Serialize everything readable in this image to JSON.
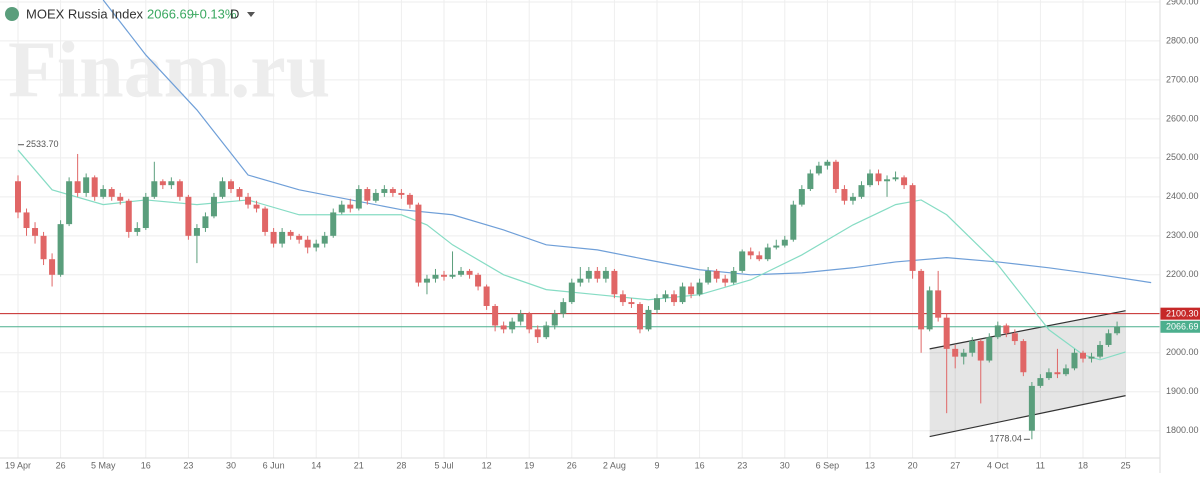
{
  "chart_data": {
    "type": "candlestick",
    "title": "MOEX Russia Index",
    "change": "+0.13%",
    "interval": "D",
    "watermark": "Finam.ru",
    "categories": [
      "19 Apr",
      null,
      null,
      null,
      null,
      "26",
      null,
      null,
      null,
      null,
      "5 May",
      null,
      null,
      null,
      null,
      "16",
      null,
      null,
      null,
      null,
      "23",
      null,
      null,
      null,
      null,
      "30",
      null,
      null,
      null,
      null,
      "6 Jun",
      null,
      null,
      null,
      null,
      "14",
      null,
      null,
      null,
      null,
      "21",
      null,
      null,
      null,
      null,
      "28",
      null,
      null,
      null,
      null,
      "5 Jul",
      null,
      null,
      null,
      null,
      "12",
      null,
      null,
      null,
      null,
      "19",
      null,
      null,
      null,
      null,
      "26",
      null,
      null,
      null,
      null,
      "2 Aug",
      null,
      null,
      null,
      null,
      "9",
      null,
      null,
      null,
      null,
      "16",
      null,
      null,
      null,
      null,
      "23",
      null,
      null,
      null,
      null,
      "30",
      null,
      null,
      null,
      null,
      "6 Sep",
      null,
      null,
      null,
      null,
      "13",
      null,
      null,
      null,
      null,
      "20",
      null,
      null,
      null,
      null,
      "27",
      null,
      null,
      null,
      null,
      "4 Oct",
      null,
      null,
      null,
      null,
      "11",
      null,
      null,
      null,
      null,
      "18",
      null,
      null,
      null,
      null,
      "25"
    ],
    "open": [
      2440,
      2360,
      2320,
      2300,
      2240,
      2200,
      2330,
      2440,
      2410,
      2450,
      2400,
      2420,
      2400,
      2390,
      2310,
      2320,
      2400,
      2440,
      2430,
      2440,
      2400,
      2300,
      2320,
      2350,
      2400,
      2440,
      2420,
      2400,
      2380,
      2370,
      2310,
      2280,
      2310,
      2300,
      2290,
      2270,
      2280,
      2300,
      2360,
      2380,
      2370,
      2420,
      2390,
      2410,
      2420,
      2410,
      2405,
      2380,
      2180,
      2190,
      2200,
      2195,
      2200,
      2210,
      2200,
      2170,
      2120,
      2070,
      2060,
      2080,
      2100,
      2060,
      2040,
      2070,
      2100,
      2130,
      2180,
      2190,
      2210,
      2190,
      2210,
      2150,
      2130,
      2125,
      2060,
      2110,
      2140,
      2150,
      2130,
      2170,
      2150,
      2180,
      2210,
      2190,
      2180,
      2210,
      2260,
      2250,
      2240,
      2270,
      2275,
      2290,
      2380,
      2420,
      2460,
      2480,
      2490,
      2420,
      2390,
      2400,
      2430,
      2460,
      2440,
      2445,
      2450,
      2430,
      2210,
      2060,
      2160,
      2090,
      2010,
      1990,
      2000,
      2030,
      1980,
      2040,
      2070,
      2050,
      2030,
      1800,
      1915,
      1935,
      1950,
      1945,
      1960,
      2000,
      1985,
      1990,
      2020,
      2050,
      null
    ],
    "high": [
      2455,
      2370,
      2335,
      2310,
      2255,
      2340,
      2450,
      2510,
      2460,
      2455,
      2430,
      2425,
      2410,
      2395,
      2335,
      2410,
      2490,
      2445,
      2450,
      2445,
      2405,
      2330,
      2360,
      2410,
      2450,
      2445,
      2425,
      2410,
      2390,
      2375,
      2320,
      2320,
      2315,
      2305,
      2300,
      2290,
      2310,
      2370,
      2390,
      2395,
      2430,
      2425,
      2420,
      2430,
      2425,
      2420,
      2410,
      2385,
      2200,
      2215,
      2210,
      2260,
      2220,
      2215,
      2205,
      2175,
      2125,
      2080,
      2090,
      2110,
      2105,
      2070,
      2080,
      2110,
      2140,
      2190,
      2220,
      2220,
      2220,
      2220,
      2215,
      2160,
      2140,
      2130,
      2120,
      2150,
      2160,
      2160,
      2180,
      2180,
      2190,
      2220,
      2215,
      2200,
      2220,
      2265,
      2270,
      2260,
      2280,
      2290,
      2300,
      2390,
      2430,
      2470,
      2490,
      2495,
      2495,
      2430,
      2410,
      2440,
      2470,
      2470,
      2455,
      2465,
      2455,
      2435,
      2215,
      2170,
      2210,
      2100,
      2020,
      2010,
      2040,
      2035,
      2050,
      2080,
      2075,
      2060,
      2035,
      1925,
      1945,
      1960,
      2010,
      1970,
      2010,
      2005,
      2000,
      2030,
      2060,
      2080,
      null
    ],
    "low": [
      2345,
      2300,
      2280,
      2225,
      2170,
      2195,
      2325,
      2400,
      2400,
      2390,
      2395,
      2390,
      2380,
      2295,
      2300,
      2315,
      2395,
      2420,
      2420,
      2390,
      2290,
      2230,
      2310,
      2345,
      2395,
      2410,
      2390,
      2370,
      2360,
      2300,
      2270,
      2270,
      2290,
      2280,
      2255,
      2260,
      2270,
      2295,
      2355,
      2360,
      2365,
      2380,
      2385,
      2400,
      2400,
      2395,
      2370,
      2170,
      2150,
      2180,
      2185,
      2190,
      2195,
      2190,
      2160,
      2110,
      2055,
      2050,
      2050,
      2070,
      2050,
      2025,
      2035,
      2060,
      2090,
      2125,
      2170,
      2180,
      2180,
      2180,
      2140,
      2120,
      2115,
      2050,
      2055,
      2100,
      2130,
      2120,
      2125,
      2140,
      2145,
      2175,
      2180,
      2170,
      2175,
      2205,
      2240,
      2235,
      2235,
      2265,
      2270,
      2285,
      2375,
      2415,
      2455,
      2470,
      2410,
      2380,
      2380,
      2395,
      2425,
      2430,
      2400,
      2440,
      2420,
      2190,
      2000,
      2055,
      2080,
      1845,
      1960,
      1970,
      1990,
      1870,
      1975,
      2035,
      2040,
      2020,
      1940,
      1778.04,
      1910,
      1930,
      1935,
      1940,
      1955,
      1975,
      1975,
      1985,
      2015,
      2045,
      null
    ],
    "close": [
      2360,
      2320,
      2300,
      2240,
      2200,
      2330,
      2440,
      2410,
      2450,
      2400,
      2420,
      2400,
      2390,
      2310,
      2320,
      2400,
      2440,
      2430,
      2440,
      2400,
      2300,
      2320,
      2350,
      2400,
      2440,
      2420,
      2400,
      2380,
      2370,
      2310,
      2280,
      2310,
      2300,
      2290,
      2270,
      2280,
      2300,
      2360,
      2380,
      2370,
      2420,
      2390,
      2410,
      2420,
      2410,
      2405,
      2380,
      2180,
      2190,
      2200,
      2195,
      2200,
      2210,
      2200,
      2170,
      2120,
      2070,
      2060,
      2080,
      2100,
      2060,
      2040,
      2070,
      2100,
      2130,
      2180,
      2190,
      2210,
      2190,
      2210,
      2150,
      2130,
      2125,
      2060,
      2110,
      2140,
      2150,
      2130,
      2170,
      2150,
      2180,
      2210,
      2190,
      2180,
      2210,
      2260,
      2250,
      2240,
      2270,
      2275,
      2290,
      2380,
      2420,
      2460,
      2480,
      2490,
      2420,
      2390,
      2400,
      2430,
      2460,
      2440,
      2445,
      2450,
      2430,
      2210,
      2060,
      2160,
      2090,
      2010,
      1990,
      2000,
      2030,
      1980,
      2040,
      2070,
      2050,
      2030,
      1950,
      1915,
      1935,
      1950,
      1945,
      1960,
      2000,
      1985,
      1990,
      2020,
      2050,
      2066.69,
      null
    ],
    "up_color": "#5a9e7c",
    "down_color": "#e06666",
    "lines": [
      {
        "color": "#6f9fd8",
        "x": [
          10,
          15,
          21,
          27,
          33,
          45,
          51,
          57,
          62,
          68,
          74,
          80,
          86,
          92,
          98,
          103,
          109,
          115,
          121,
          127,
          133
        ],
        "values": [
          2905,
          2764,
          2623,
          2456,
          2418,
          2367,
          2354,
          2315,
          2277,
          2264,
          2238,
          2213,
          2200,
          2205,
          2218,
          2233,
          2244,
          2233,
          2218,
          2200,
          2180
        ]
      },
      {
        "color": "#86dcc4",
        "x": [
          0,
          4,
          10,
          15,
          21,
          27,
          33,
          39,
          45,
          48,
          51,
          57,
          62,
          68,
          74,
          80,
          86,
          92,
          98,
          103,
          106,
          109,
          115,
          121,
          125,
          127,
          130
        ],
        "values": [
          2520,
          2418,
          2380,
          2392,
          2380,
          2392,
          2354,
          2354,
          2354,
          2328,
          2277,
          2200,
          2162,
          2149,
          2136,
          2149,
          2187,
          2251,
          2328,
          2380,
          2392,
          2354,
          2226,
          2059,
          1995,
          1982,
          2002
        ]
      }
    ],
    "channel": {
      "x": [
        107,
        130
      ],
      "upper": [
        2010,
        2108
      ],
      "lower": [
        1785,
        1890
      ],
      "color": "#333333"
    },
    "price_lines": [
      {
        "value": 2100.3,
        "label": "2100.30",
        "color": "#c62828"
      },
      {
        "value": 2066.69,
        "label": "2066.69",
        "color": "#4caf8e"
      }
    ],
    "annotations": [
      {
        "value": 2533.7,
        "label": "2533.70",
        "x": 0
      }
    ],
    "ylim": [
      1730,
      2905
    ],
    "yticks": [
      {
        "value": 1800,
        "label": "1800.00"
      },
      {
        "value": 1900,
        "label": "1900.00"
      },
      {
        "value": 2000,
        "label": "2000.00"
      },
      {
        "value": 2100,
        "label": "2100.00"
      },
      {
        "value": 2200,
        "label": "2200.00"
      },
      {
        "value": 2300,
        "label": "2300.00"
      },
      {
        "value": 2400,
        "label": "2400.00"
      },
      {
        "value": 2500,
        "label": "2500.00"
      },
      {
        "value": 2600,
        "label": "2600.00"
      },
      {
        "value": 2700,
        "label": "2700.00"
      },
      {
        "value": 2800,
        "label": "2800.00"
      },
      {
        "value": 2900,
        "label": "2900.00"
      }
    ],
    "grid": true
  }
}
